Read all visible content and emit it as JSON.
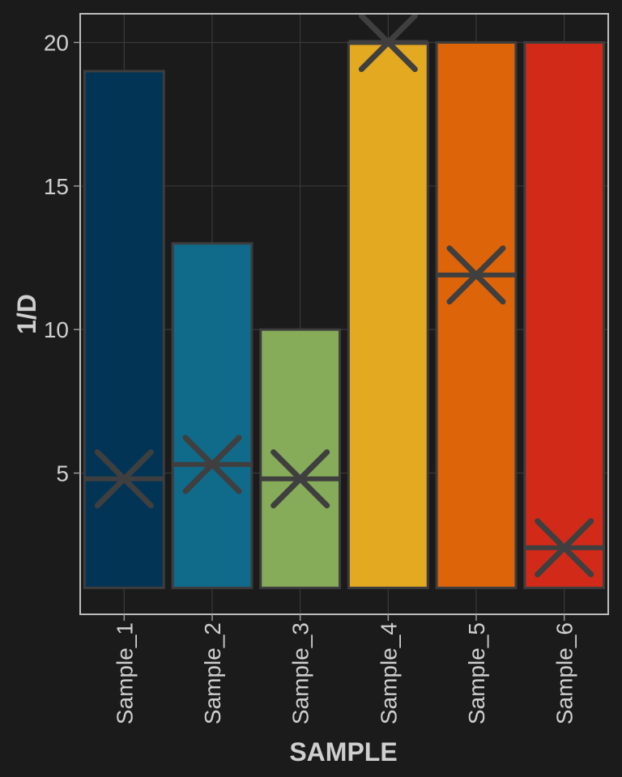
{
  "chart_data": {
    "type": "bar",
    "xlabel": "SAMPLE",
    "ylabel": "1/D",
    "ylim": [
      0.08,
      21.0
    ],
    "yticks": [
      5,
      10,
      15,
      20
    ],
    "grid": true,
    "legend": "none",
    "bar_baseline": 1,
    "categories": [
      "Sample_1",
      "Sample_2",
      "Sample_3",
      "Sample_4",
      "Sample_5",
      "Sample_6"
    ],
    "series": [
      {
        "values": [
          19,
          13,
          10,
          20,
          20,
          20
        ]
      },
      {
        "marker": "x",
        "values": [
          4.8,
          5.3,
          4.8,
          20,
          11.9,
          2.4
        ]
      }
    ],
    "colors": {
      "background": "#1b1b1b",
      "panel_border": "#bdbdbd",
      "grid": "#3a3a3a",
      "bar_border": "#3d3d3d",
      "marker": "#3f3f3f",
      "text": "#cfcfcf",
      "bars": [
        "#023456",
        "#106a8a",
        "#86ab59",
        "#e3a920",
        "#de6409",
        "#d12a19"
      ]
    }
  }
}
